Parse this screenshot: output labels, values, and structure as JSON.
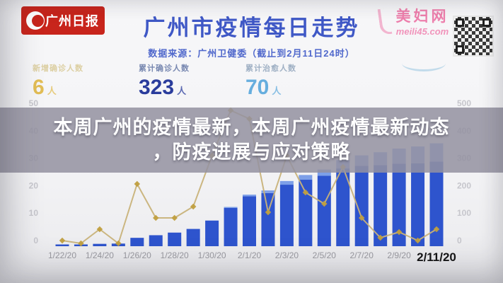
{
  "header": {
    "logo": {
      "name": "广州日报",
      "bg_color": "#c8251c"
    },
    "title": "广州市疫情每日走势",
    "subtitle": "数据来源：广州卫健委（截止到2月11日24时）",
    "title_color": "#3f58c6",
    "watermark": {
      "site_name": "美妇网",
      "site_url": "meili45.com",
      "color": "#ee7fad"
    }
  },
  "stats": [
    {
      "label": "新增确诊人数",
      "value": "6",
      "unit": "人",
      "color": "#e2bd55",
      "label_color": "#dccfa2"
    },
    {
      "label": "累计确诊人数",
      "value": "323",
      "unit": "人",
      "color": "#2a3c9c",
      "label_color": "#7787b0"
    },
    {
      "label": "累计治愈人数",
      "value": "70",
      "unit": "人",
      "color": "#66aede",
      "label_color": "#9fb0c4"
    }
  ],
  "overlay": {
    "line1": "本周广州的疫情最新，本周广州疫情最新动态",
    "line2": "，防疫进展与应对策略"
  },
  "chart_data": {
    "type": "bar",
    "title": "广州市疫情每日走势",
    "x": [
      "1/22/20",
      "1/23/20",
      "1/24/20",
      "1/25/20",
      "1/26/20",
      "1/27/20",
      "1/28/20",
      "1/29/20",
      "1/30/20",
      "1/31/20",
      "2/1/20",
      "2/2/20",
      "2/3/20",
      "2/4/20",
      "2/5/20",
      "2/6/20",
      "2/7/20",
      "2/8/20",
      "2/9/20",
      "2/10/20",
      "2/11/20"
    ],
    "x_tick_every": 2,
    "series": [
      {
        "name": "累计确诊人数",
        "type": "bar",
        "axis": "right",
        "stacked": true,
        "color": "#2e54cd",
        "values": [
          2,
          3,
          9,
          10,
          32,
          42,
          52,
          66,
          98,
          146,
          191,
          203,
          235,
          254,
          269,
          297,
          307,
          310,
          315,
          317,
          323
        ]
      },
      {
        "name": "累计治愈人数",
        "type": "bar",
        "axis": "right",
        "stacked": true,
        "color": "#7d9fe8",
        "values": [
          0,
          0,
          0,
          0,
          0,
          0,
          0,
          2,
          2,
          4,
          6,
          10,
          14,
          18,
          24,
          32,
          40,
          49,
          58,
          64,
          70
        ]
      },
      {
        "name": "新增确诊人数",
        "type": "line",
        "axis": "left",
        "color": "#c8b279",
        "marker": "diamond",
        "marker_color": "#c09f3f",
        "values": [
          2,
          1,
          6,
          1,
          22,
          10,
          10,
          14,
          32,
          48,
          45,
          12,
          32,
          19,
          15,
          28,
          10,
          3,
          5,
          2,
          6
        ]
      }
    ],
    "left_axis": {
      "ticks": [
        "0",
        "10",
        "20",
        "30",
        "40",
        "50"
      ],
      "range": [
        0,
        50
      ]
    },
    "right_axis": {
      "ticks": [
        "0",
        "100",
        "200",
        "300",
        "400",
        "500"
      ],
      "range": [
        0,
        500
      ]
    },
    "grid": false,
    "legend": false,
    "x_label_color": "#9a9aa0",
    "tick_label_color": "#c6c6cc",
    "last_x_label_emphasized": true
  }
}
